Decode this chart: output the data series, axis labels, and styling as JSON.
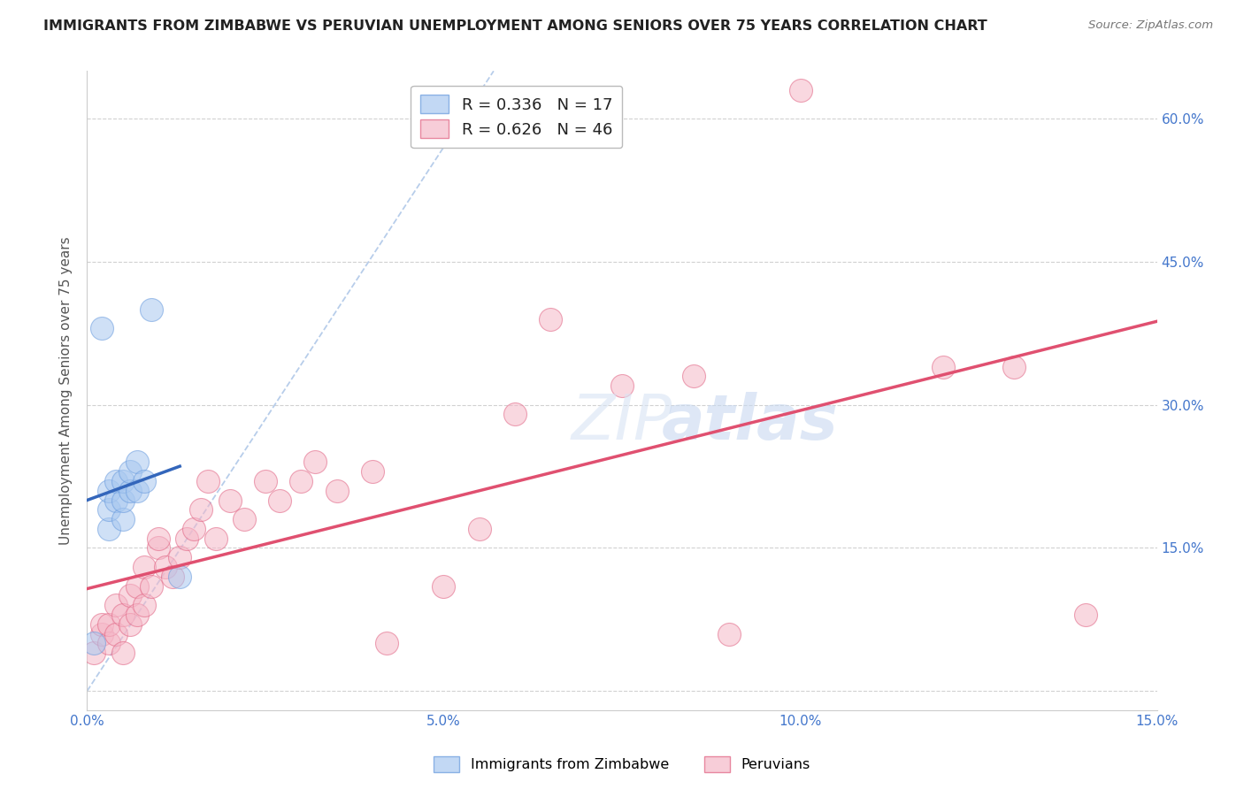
{
  "title": "IMMIGRANTS FROM ZIMBABWE VS PERUVIAN UNEMPLOYMENT AMONG SENIORS OVER 75 YEARS CORRELATION CHART",
  "source": "Source: ZipAtlas.com",
  "ylabel": "Unemployment Among Seniors over 75 years",
  "xlim": [
    0.0,
    0.15
  ],
  "ylim": [
    -0.02,
    0.65
  ],
  "xticks": [
    0.0,
    0.05,
    0.1,
    0.15
  ],
  "xtick_labels": [
    "0.0%",
    "5.0%",
    "10.0%",
    "15.0%"
  ],
  "yticks": [
    0.0,
    0.15,
    0.3,
    0.45,
    0.6
  ],
  "ytick_labels": [
    "",
    "15.0%",
    "30.0%",
    "45.0%",
    "60.0%"
  ],
  "legend_r1": "R = 0.336",
  "legend_n1": "N = 17",
  "legend_r2": "R = 0.626",
  "legend_n2": "N = 46",
  "color_zimbabwe_fill": "#A8C8F0",
  "color_zimbabwe_edge": "#6699DD",
  "color_peruvian_fill": "#F5B8C8",
  "color_peruvian_edge": "#E06080",
  "color_line_zimbabwe": "#3366BB",
  "color_line_peruvian": "#E05070",
  "color_diag": "#B0C8E8",
  "zimbabwe_x": [
    0.001,
    0.002,
    0.003,
    0.003,
    0.003,
    0.004,
    0.004,
    0.005,
    0.005,
    0.005,
    0.006,
    0.006,
    0.007,
    0.007,
    0.008,
    0.009,
    0.013
  ],
  "zimbabwe_y": [
    0.05,
    0.38,
    0.17,
    0.19,
    0.21,
    0.2,
    0.22,
    0.18,
    0.2,
    0.22,
    0.21,
    0.23,
    0.21,
    0.24,
    0.22,
    0.4,
    0.12
  ],
  "peruvian_x": [
    0.001,
    0.002,
    0.002,
    0.003,
    0.003,
    0.004,
    0.004,
    0.005,
    0.005,
    0.006,
    0.006,
    0.007,
    0.007,
    0.008,
    0.008,
    0.009,
    0.01,
    0.01,
    0.011,
    0.012,
    0.013,
    0.014,
    0.015,
    0.016,
    0.017,
    0.018,
    0.02,
    0.022,
    0.025,
    0.027,
    0.03,
    0.032,
    0.035,
    0.04,
    0.042,
    0.05,
    0.055,
    0.06,
    0.065,
    0.075,
    0.085,
    0.09,
    0.1,
    0.12,
    0.13,
    0.14
  ],
  "peruvian_y": [
    0.04,
    0.06,
    0.07,
    0.05,
    0.07,
    0.06,
    0.09,
    0.04,
    0.08,
    0.07,
    0.1,
    0.08,
    0.11,
    0.09,
    0.13,
    0.11,
    0.15,
    0.16,
    0.13,
    0.12,
    0.14,
    0.16,
    0.17,
    0.19,
    0.22,
    0.16,
    0.2,
    0.18,
    0.22,
    0.2,
    0.22,
    0.24,
    0.21,
    0.23,
    0.05,
    0.11,
    0.17,
    0.29,
    0.39,
    0.32,
    0.33,
    0.06,
    0.63,
    0.34,
    0.34,
    0.08
  ],
  "background_color": "#FFFFFF",
  "grid_color": "#CCCCCC",
  "watermark_text": "ZIPatlas",
  "watermark_color": "#D0DCF0"
}
